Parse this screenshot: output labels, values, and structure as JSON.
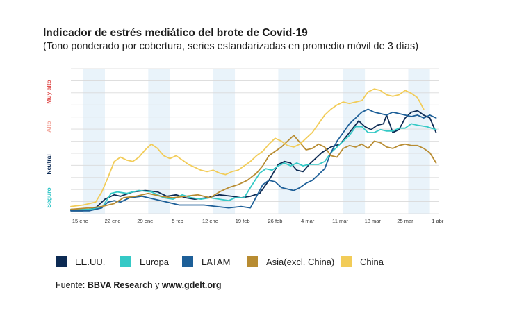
{
  "chart_data": {
    "type": "line",
    "title": "Indicador de estrés mediático del brote de Covid-19",
    "subtitle": "(Tono ponderado por cobertura, series estandarizadas en promedio móvil de 3 días)",
    "xlabel": "",
    "ylabel": "",
    "x_tick_labels": [
      "15 ene",
      "22 ene",
      "29 ene",
      "5 feb",
      "12 ene",
      "19 feb",
      "26 feb",
      "4 mar",
      "11 mar",
      "18 mar",
      "25 mar",
      "1 abr"
    ],
    "y_category_labels": [
      {
        "label": "Seguro",
        "color": "#2cc4c6"
      },
      {
        "label": "Neutral",
        "color": "#0d2b55"
      },
      {
        "label": "Alto",
        "color": "#f2a49a"
      },
      {
        "label": "Muy alto",
        "color": "#e0504f"
      }
    ],
    "x_range": [
      0,
      119
    ],
    "y_range": [
      0,
      10
    ],
    "shaded_weeks": [
      [
        4,
        11
      ],
      [
        25,
        32
      ],
      [
        46,
        53
      ],
      [
        67,
        74
      ],
      [
        88,
        95
      ],
      [
        109,
        116
      ]
    ],
    "grid": true,
    "legend_position": "bottom",
    "series": [
      {
        "name": "EE.UU.",
        "color": "#0c2a53",
        "points": [
          [
            0,
            0.2
          ],
          [
            4,
            0.2
          ],
          [
            8,
            0.4
          ],
          [
            11,
            1.0
          ],
          [
            14,
            1.3
          ],
          [
            16,
            1.2
          ],
          [
            20,
            1.5
          ],
          [
            24,
            1.6
          ],
          [
            28,
            1.5
          ],
          [
            31,
            1.2
          ],
          [
            34,
            1.3
          ],
          [
            37,
            1.1
          ],
          [
            40,
            1.0
          ],
          [
            44,
            1.1
          ],
          [
            48,
            1.3
          ],
          [
            52,
            1.2
          ],
          [
            55,
            1.1
          ],
          [
            58,
            1.2
          ],
          [
            61,
            1.4
          ],
          [
            64,
            2.3
          ],
          [
            67,
            3.4
          ],
          [
            69,
            3.6
          ],
          [
            71,
            3.5
          ],
          [
            73,
            3.0
          ],
          [
            75,
            2.9
          ],
          [
            77,
            3.4
          ],
          [
            79,
            3.8
          ],
          [
            81,
            4.2
          ],
          [
            84,
            4.6
          ],
          [
            87,
            4.8
          ],
          [
            90,
            5.6
          ],
          [
            93,
            6.4
          ],
          [
            95,
            6.0
          ],
          [
            97,
            5.8
          ],
          [
            99,
            6.1
          ],
          [
            101,
            6.2
          ],
          [
            102,
            6.8
          ],
          [
            104,
            5.6
          ],
          [
            106,
            5.8
          ],
          [
            108,
            6.6
          ],
          [
            110,
            7.0
          ],
          [
            112,
            7.1
          ],
          [
            114,
            6.8
          ],
          [
            116,
            6.6
          ],
          [
            118,
            5.6
          ]
        ]
      },
      {
        "name": "Europa",
        "color": "#35c9c6",
        "points": [
          [
            0,
            0.3
          ],
          [
            6,
            0.3
          ],
          [
            10,
            0.4
          ],
          [
            13,
            1.4
          ],
          [
            15,
            1.5
          ],
          [
            18,
            1.4
          ],
          [
            22,
            1.6
          ],
          [
            26,
            1.5
          ],
          [
            30,
            1.1
          ],
          [
            33,
            1.0
          ],
          [
            36,
            1.3
          ],
          [
            39,
            1.1
          ],
          [
            42,
            1.0
          ],
          [
            45,
            1.1
          ],
          [
            48,
            1.0
          ],
          [
            51,
            0.9
          ],
          [
            53,
            1.1
          ],
          [
            56,
            1.1
          ],
          [
            58,
            1.8
          ],
          [
            61,
            2.8
          ],
          [
            63,
            3.1
          ],
          [
            65,
            3.0
          ],
          [
            67,
            3.3
          ],
          [
            69,
            3.5
          ],
          [
            71,
            3.3
          ],
          [
            73,
            3.5
          ],
          [
            75,
            3.3
          ],
          [
            77,
            3.4
          ],
          [
            80,
            3.4
          ],
          [
            82,
            3.6
          ],
          [
            84,
            4.2
          ],
          [
            86,
            4.6
          ],
          [
            88,
            5.0
          ],
          [
            90,
            5.4
          ],
          [
            92,
            6.0
          ],
          [
            94,
            6.0
          ],
          [
            96,
            5.6
          ],
          [
            98,
            5.6
          ],
          [
            100,
            5.8
          ],
          [
            102,
            5.7
          ],
          [
            104,
            5.7
          ],
          [
            106,
            5.9
          ],
          [
            108,
            5.9
          ],
          [
            110,
            6.2
          ],
          [
            112,
            6.1
          ],
          [
            115,
            6.0
          ],
          [
            118,
            5.8
          ]
        ]
      },
      {
        "name": "LATAM",
        "color": "#1d5f98",
        "points": [
          [
            0,
            0.2
          ],
          [
            6,
            0.2
          ],
          [
            10,
            0.4
          ],
          [
            12,
            0.8
          ],
          [
            14,
            0.9
          ],
          [
            16,
            0.8
          ],
          [
            19,
            1.1
          ],
          [
            23,
            1.2
          ],
          [
            27,
            1.0
          ],
          [
            31,
            0.8
          ],
          [
            35,
            0.6
          ],
          [
            39,
            0.6
          ],
          [
            43,
            0.6
          ],
          [
            47,
            0.5
          ],
          [
            51,
            0.4
          ],
          [
            55,
            0.5
          ],
          [
            58,
            0.4
          ],
          [
            60,
            1.2
          ],
          [
            62,
            2.0
          ],
          [
            64,
            2.3
          ],
          [
            66,
            2.2
          ],
          [
            68,
            1.8
          ],
          [
            70,
            1.7
          ],
          [
            72,
            1.6
          ],
          [
            74,
            1.8
          ],
          [
            76,
            2.1
          ],
          [
            78,
            2.3
          ],
          [
            80,
            2.7
          ],
          [
            82,
            3.1
          ],
          [
            84,
            4.2
          ],
          [
            86,
            5.0
          ],
          [
            88,
            5.6
          ],
          [
            90,
            6.2
          ],
          [
            92,
            6.6
          ],
          [
            94,
            7.0
          ],
          [
            96,
            7.2
          ],
          [
            98,
            7.0
          ],
          [
            100,
            6.9
          ],
          [
            102,
            6.8
          ],
          [
            104,
            7.0
          ],
          [
            106,
            6.9
          ],
          [
            108,
            6.8
          ],
          [
            110,
            6.7
          ],
          [
            112,
            6.8
          ],
          [
            114,
            6.6
          ],
          [
            116,
            6.8
          ],
          [
            118,
            6.6
          ]
        ]
      },
      {
        "name": "Asia(excl. China)",
        "color": "#b88c32",
        "points": [
          [
            0,
            0.3
          ],
          [
            6,
            0.4
          ],
          [
            10,
            0.5
          ],
          [
            14,
            0.7
          ],
          [
            17,
            1.1
          ],
          [
            21,
            1.2
          ],
          [
            25,
            1.4
          ],
          [
            29,
            1.2
          ],
          [
            33,
            1.1
          ],
          [
            37,
            1.2
          ],
          [
            41,
            1.3
          ],
          [
            45,
            1.1
          ],
          [
            48,
            1.5
          ],
          [
            51,
            1.8
          ],
          [
            54,
            2.0
          ],
          [
            57,
            2.3
          ],
          [
            60,
            2.8
          ],
          [
            62,
            3.3
          ],
          [
            64,
            4.0
          ],
          [
            66,
            4.3
          ],
          [
            68,
            4.6
          ],
          [
            70,
            5.0
          ],
          [
            72,
            5.4
          ],
          [
            74,
            4.9
          ],
          [
            76,
            4.4
          ],
          [
            78,
            4.5
          ],
          [
            80,
            4.8
          ],
          [
            82,
            4.6
          ],
          [
            84,
            4.0
          ],
          [
            86,
            3.9
          ],
          [
            88,
            4.5
          ],
          [
            90,
            4.7
          ],
          [
            92,
            4.6
          ],
          [
            94,
            4.8
          ],
          [
            96,
            4.5
          ],
          [
            98,
            5.0
          ],
          [
            100,
            4.9
          ],
          [
            102,
            4.6
          ],
          [
            104,
            4.5
          ],
          [
            106,
            4.7
          ],
          [
            108,
            4.8
          ],
          [
            110,
            4.7
          ],
          [
            112,
            4.7
          ],
          [
            114,
            4.5
          ],
          [
            116,
            4.2
          ],
          [
            118,
            3.5
          ]
        ]
      },
      {
        "name": "China",
        "color": "#f2cc58",
        "points": [
          [
            0,
            0.5
          ],
          [
            4,
            0.6
          ],
          [
            8,
            0.8
          ],
          [
            10,
            1.5
          ],
          [
            12,
            2.5
          ],
          [
            14,
            3.6
          ],
          [
            16,
            3.9
          ],
          [
            18,
            3.7
          ],
          [
            20,
            3.6
          ],
          [
            22,
            3.9
          ],
          [
            24,
            4.4
          ],
          [
            26,
            4.8
          ],
          [
            28,
            4.5
          ],
          [
            30,
            4.0
          ],
          [
            32,
            3.8
          ],
          [
            34,
            4.0
          ],
          [
            36,
            3.7
          ],
          [
            38,
            3.4
          ],
          [
            40,
            3.2
          ],
          [
            42,
            3.0
          ],
          [
            44,
            2.9
          ],
          [
            46,
            3.0
          ],
          [
            48,
            2.8
          ],
          [
            50,
            2.7
          ],
          [
            52,
            2.9
          ],
          [
            54,
            3.0
          ],
          [
            56,
            3.3
          ],
          [
            58,
            3.6
          ],
          [
            60,
            4.0
          ],
          [
            62,
            4.3
          ],
          [
            64,
            4.8
          ],
          [
            66,
            5.2
          ],
          [
            68,
            5.0
          ],
          [
            70,
            4.7
          ],
          [
            72,
            4.6
          ],
          [
            74,
            4.8
          ],
          [
            76,
            5.2
          ],
          [
            78,
            5.6
          ],
          [
            80,
            6.2
          ],
          [
            82,
            6.8
          ],
          [
            84,
            7.2
          ],
          [
            86,
            7.5
          ],
          [
            88,
            7.7
          ],
          [
            90,
            7.6
          ],
          [
            92,
            7.7
          ],
          [
            94,
            7.8
          ],
          [
            96,
            8.4
          ],
          [
            98,
            8.6
          ],
          [
            100,
            8.5
          ],
          [
            102,
            8.2
          ],
          [
            104,
            8.1
          ],
          [
            106,
            8.2
          ],
          [
            108,
            8.5
          ],
          [
            110,
            8.3
          ],
          [
            112,
            8.0
          ],
          [
            114,
            7.2
          ]
        ]
      }
    ]
  },
  "legend": [
    {
      "label": "EE.UU.",
      "color": "#0c2a53"
    },
    {
      "label": "Europa",
      "color": "#35c9c6"
    },
    {
      "label": "LATAM",
      "color": "#1d5f98"
    },
    {
      "label": "Asia(excl. China)",
      "color": "#b88c32"
    },
    {
      "label": "China",
      "color": "#f2cc58"
    }
  ],
  "source": {
    "prefix": "Fuente: ",
    "org": "BBVA Research",
    "connector": " y ",
    "site": "www.gdelt.org"
  }
}
